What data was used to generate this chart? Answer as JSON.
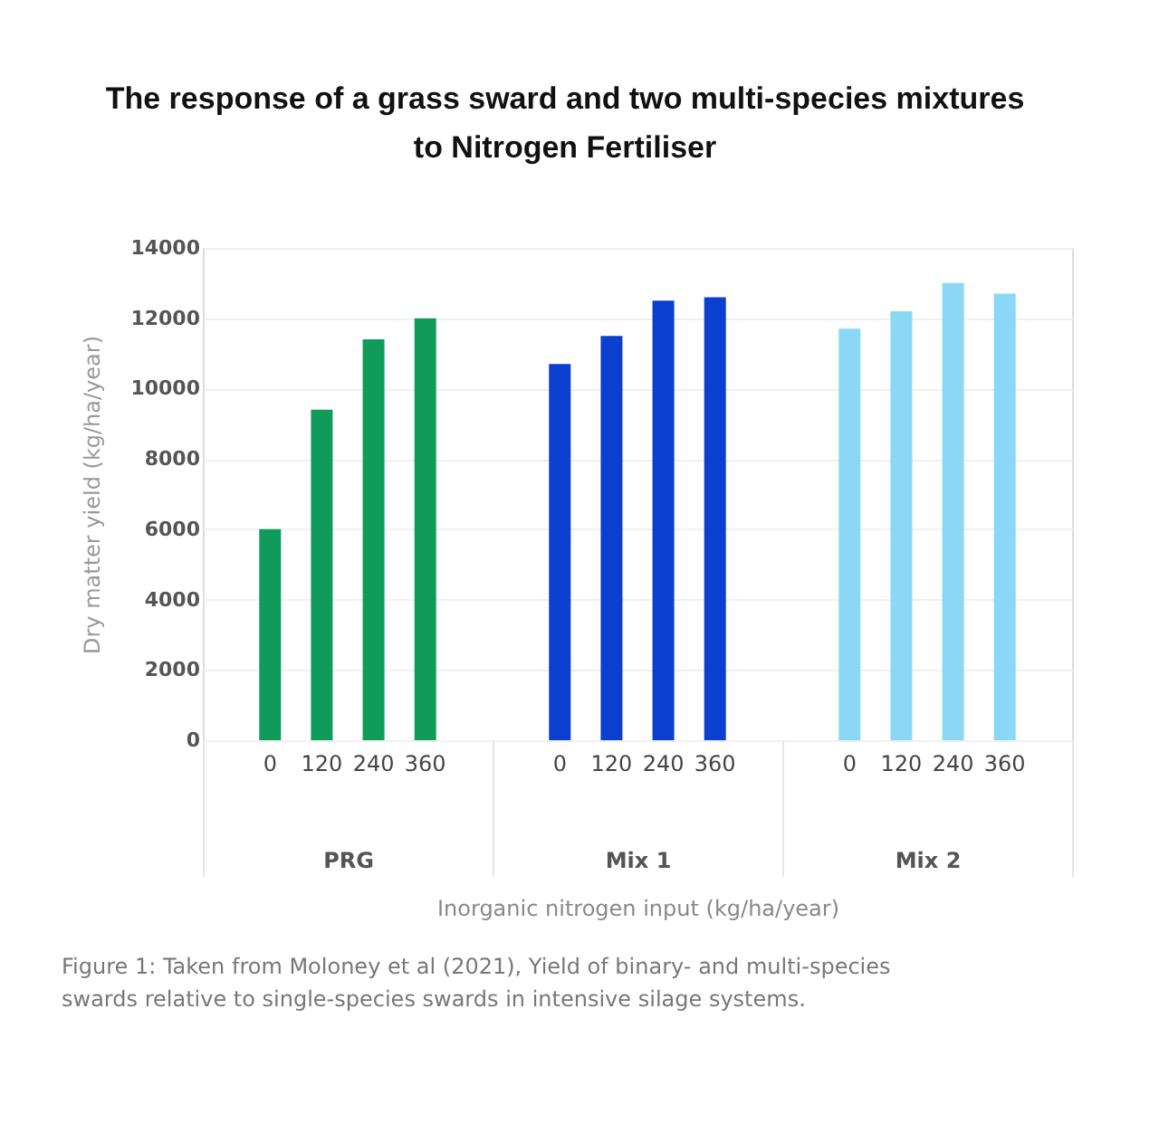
{
  "chart_data": {
    "type": "bar",
    "title": "The response of a grass sward and two multi-species mixtures to Nitrogen Fertiliser",
    "categories": [
      "PRG",
      "Mix 1",
      "Mix 2"
    ],
    "series": [
      {
        "name": "0",
        "colors": [
          "#109b5a",
          "#0a3fd0",
          "#8ad8f5"
        ],
        "values": [
          6000,
          10700,
          11700
        ]
      },
      {
        "name": "120",
        "colors": [
          "#109b5a",
          "#0a3fd0",
          "#8ad8f5"
        ],
        "values": [
          9400,
          11500,
          12200
        ]
      },
      {
        "name": "240",
        "colors": [
          "#109b5a",
          "#0a3fd0",
          "#8ad8f5"
        ],
        "values": [
          11400,
          12500,
          13000
        ]
      },
      {
        "name": "360",
        "colors": [
          "#109b5a",
          "#0a3fd0",
          "#8ad8f5"
        ],
        "values": [
          12000,
          12600,
          12700
        ]
      }
    ],
    "xlabel": "Inorganic nitrogen input (kg/ha/year)",
    "ylabel": "Dry matter yield (kg/ha/year)",
    "ylim": [
      0,
      14000
    ],
    "yticks": [
      0,
      2000,
      4000,
      6000,
      8000,
      10000,
      12000,
      14000
    ],
    "grid": "y",
    "annotations": [
      "Figure 1: Taken from Moloney et al (2021), Yield of binary- and multi-species swards relative to single-species swards in intensive silage systems."
    ]
  }
}
